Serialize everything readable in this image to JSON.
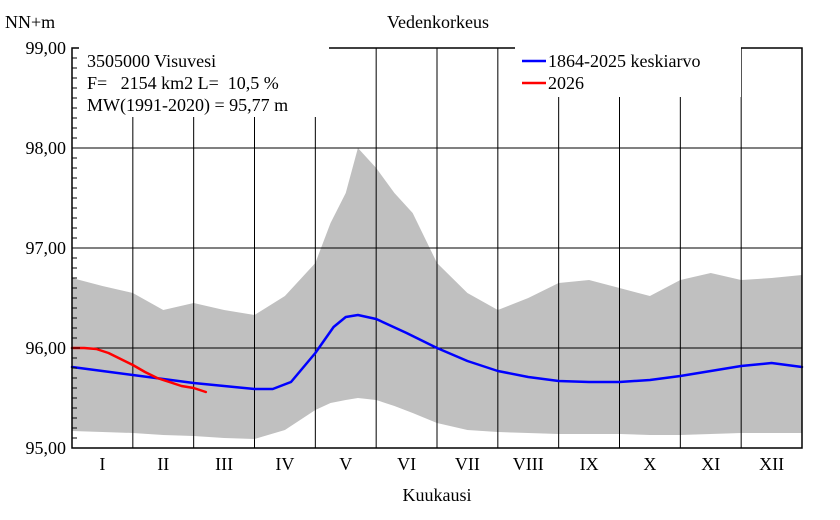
{
  "chart_data": {
    "type": "line",
    "title": "Vedenkorkeus",
    "ylabel": "NN+m",
    "xlabel": "Kuukausi",
    "categories": [
      "I",
      "II",
      "III",
      "IV",
      "V",
      "VI",
      "VII",
      "VIII",
      "IX",
      "X",
      "XI",
      "XII"
    ],
    "ylim": [
      95.0,
      99.0
    ],
    "yticks": [
      "95,00",
      "96,00",
      "97,00",
      "98,00",
      "99,00"
    ],
    "grid": true,
    "legend_position": "top-right",
    "info": [
      "3505000 Visuvesi",
      "F=   2154 km2 L=  10,5 %",
      "MW(1991-2020) = 95,77 m"
    ],
    "colors": {
      "mean": "#0000ff",
      "current": "#ff0000",
      "band": "#c0c0c0"
    },
    "series": [
      {
        "name": "1864-2025 keskiarvo",
        "x": [
          0.0,
          0.5,
          1.0,
          1.5,
          2.0,
          2.5,
          3.0,
          3.3,
          3.6,
          4.0,
          4.3,
          4.5,
          4.7,
          5.0,
          5.5,
          6.0,
          6.5,
          7.0,
          7.5,
          8.0,
          8.5,
          9.0,
          9.5,
          10.0,
          10.5,
          11.0,
          11.5,
          12.0
        ],
        "values": [
          95.81,
          95.77,
          95.73,
          95.69,
          95.65,
          95.62,
          95.59,
          95.59,
          95.66,
          95.95,
          96.21,
          96.31,
          96.33,
          96.29,
          96.15,
          96.0,
          95.87,
          95.77,
          95.71,
          95.67,
          95.66,
          95.66,
          95.68,
          95.72,
          95.77,
          95.82,
          95.85,
          95.81
        ]
      },
      {
        "name": "2026",
        "x": [
          0.0,
          0.2,
          0.4,
          0.6,
          0.8,
          1.0,
          1.2,
          1.4,
          1.6,
          1.8,
          2.0,
          2.2
        ],
        "values": [
          96.0,
          96.0,
          95.99,
          95.95,
          95.89,
          95.83,
          95.76,
          95.7,
          95.66,
          95.62,
          95.6,
          95.56
        ]
      }
    ],
    "range": {
      "x": [
        0.0,
        0.5,
        1.0,
        1.5,
        2.0,
        2.5,
        3.0,
        3.5,
        4.0,
        4.25,
        4.5,
        4.7,
        5.0,
        5.3,
        5.6,
        6.0,
        6.5,
        7.0,
        7.5,
        8.0,
        8.5,
        9.0,
        9.5,
        10.0,
        10.5,
        11.0,
        11.5,
        12.0
      ],
      "max": [
        96.7,
        96.62,
        96.55,
        96.38,
        96.45,
        96.38,
        96.33,
        96.52,
        96.85,
        97.25,
        97.55,
        98.0,
        97.8,
        97.55,
        97.35,
        96.85,
        96.55,
        96.38,
        96.5,
        96.65,
        96.68,
        96.6,
        96.52,
        96.68,
        96.75,
        96.68,
        96.7,
        96.73
      ],
      "min": [
        95.17,
        95.16,
        95.15,
        95.13,
        95.12,
        95.1,
        95.09,
        95.18,
        95.38,
        95.45,
        95.48,
        95.5,
        95.48,
        95.42,
        95.35,
        95.25,
        95.18,
        95.16,
        95.15,
        95.14,
        95.14,
        95.14,
        95.13,
        95.13,
        95.14,
        95.15,
        95.15,
        95.15
      ]
    }
  }
}
